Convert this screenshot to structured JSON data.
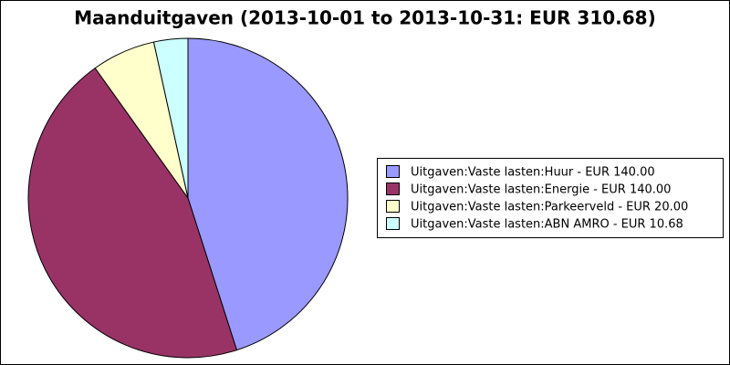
{
  "chart_data": {
    "type": "pie",
    "title": "Maanduitgaven (2013-10-01 to 2013-10-31: EUR 310.68)",
    "categories": [
      "Uitgaven:Vaste lasten:Huur - EUR 140.00",
      "Uitgaven:Vaste lasten:Energie - EUR 140.00",
      "Uitgaven:Vaste lasten:Parkeerveld - EUR 20.00",
      "Uitgaven:Vaste lasten:ABN AMRO - EUR 10.68"
    ],
    "values": [
      140,
      140,
      20,
      10.68
    ],
    "colors": [
      "#9999ff",
      "#993366",
      "#ffffcc",
      "#ccffff"
    ]
  }
}
